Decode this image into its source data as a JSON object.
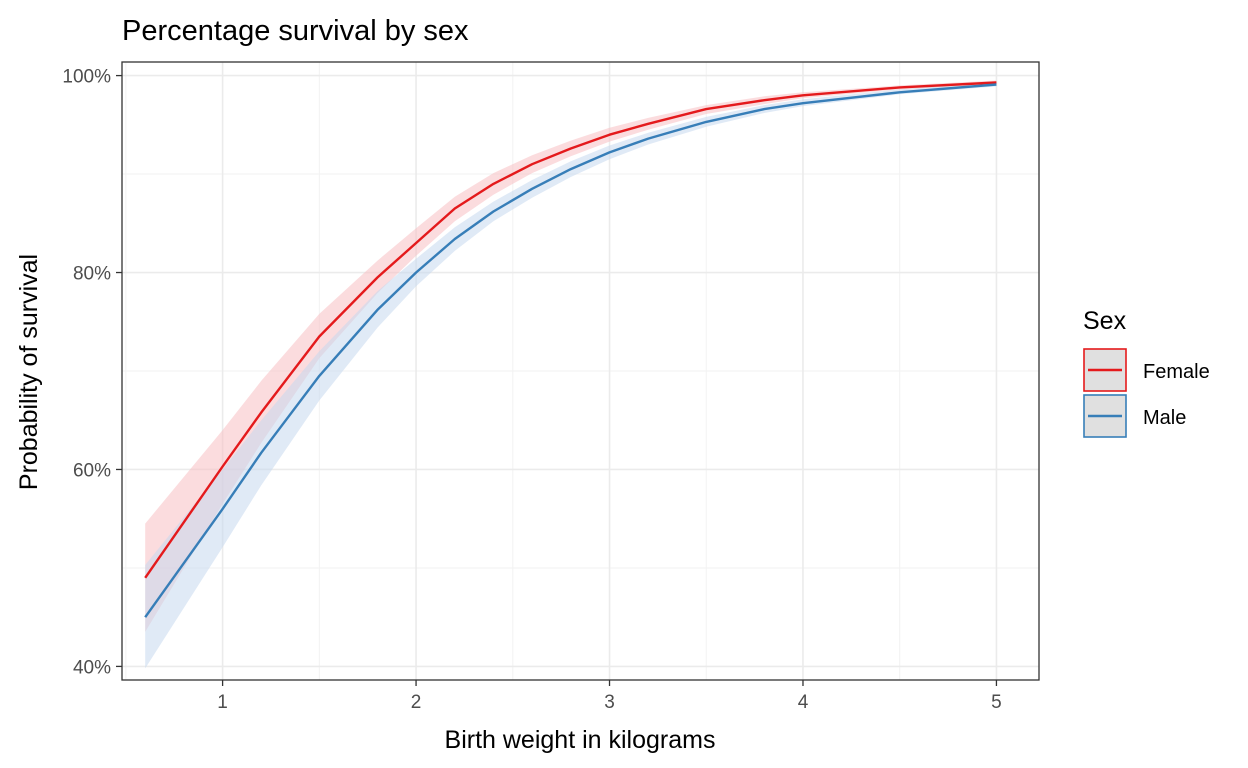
{
  "chart_data": {
    "type": "line",
    "title": "Percentage survival by sex",
    "xlabel": "Birth weight in kilograms",
    "ylabel": "Probability of survival",
    "xlim": [
      0.48,
      5.22
    ],
    "ylim": [
      0.3862,
      1.0138
    ],
    "x_ticks": [
      1,
      2,
      3,
      4,
      5
    ],
    "x_tick_labels": [
      "1",
      "2",
      "3",
      "4",
      "5"
    ],
    "y_ticks": [
      0.4,
      0.6,
      0.8,
      1.0
    ],
    "y_tick_labels": [
      "40%",
      "60%",
      "80%",
      "100%"
    ],
    "grid": true,
    "legend": {
      "title": "Sex",
      "position": "right"
    },
    "x": [
      0.6,
      1.0,
      1.2,
      1.5,
      1.8,
      2.0,
      2.2,
      2.4,
      2.6,
      2.8,
      3.0,
      3.2,
      3.5,
      3.8,
      4.0,
      4.5,
      5.0
    ],
    "series": [
      {
        "name": "Female",
        "color": "#e41a1c",
        "band_color": "#f7bfc2",
        "values": [
          0.49,
          0.603,
          0.658,
          0.735,
          0.795,
          0.83,
          0.865,
          0.89,
          0.91,
          0.926,
          0.94,
          0.951,
          0.966,
          0.975,
          0.98,
          0.988,
          0.993
        ],
        "lower": [
          0.435,
          0.565,
          0.627,
          0.713,
          0.779,
          0.817,
          0.852,
          0.879,
          0.901,
          0.918,
          0.933,
          0.945,
          0.961,
          0.971,
          0.977,
          0.986,
          0.991
        ],
        "upper": [
          0.545,
          0.64,
          0.69,
          0.758,
          0.812,
          0.845,
          0.877,
          0.901,
          0.919,
          0.934,
          0.947,
          0.957,
          0.97,
          0.979,
          0.983,
          0.99,
          0.995
        ]
      },
      {
        "name": "Male",
        "color": "#377eb8",
        "band_color": "#c6d9ee",
        "values": [
          0.45,
          0.56,
          0.617,
          0.695,
          0.762,
          0.8,
          0.834,
          0.862,
          0.885,
          0.905,
          0.922,
          0.936,
          0.953,
          0.966,
          0.972,
          0.983,
          0.991
        ],
        "lower": [
          0.398,
          0.521,
          0.584,
          0.67,
          0.744,
          0.786,
          0.822,
          0.852,
          0.876,
          0.897,
          0.915,
          0.93,
          0.948,
          0.962,
          0.969,
          0.981,
          0.989
        ],
        "upper": [
          0.503,
          0.6,
          0.65,
          0.72,
          0.781,
          0.814,
          0.846,
          0.872,
          0.894,
          0.913,
          0.929,
          0.942,
          0.958,
          0.97,
          0.976,
          0.986,
          0.993
        ]
      }
    ]
  }
}
